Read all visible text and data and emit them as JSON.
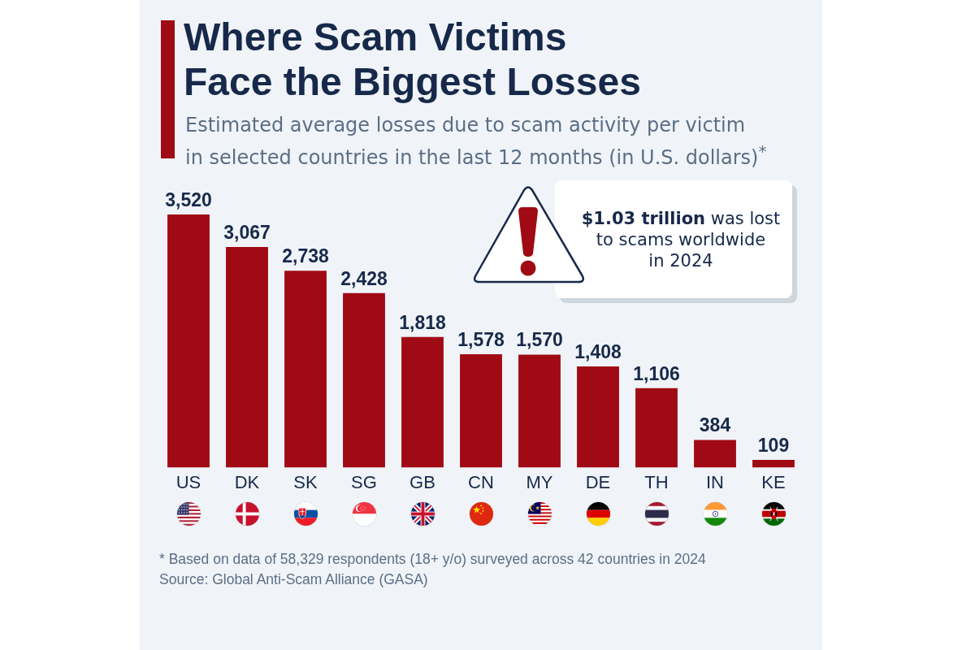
{
  "chart_data": {
    "type": "bar",
    "title": "Where Scam Victims Face the Biggest Losses",
    "subtitle": "Estimated average losses due to scam activity per victim in selected countries in the last 12 months (in U.S. dollars)$^{*}$",
    "categories": [
      "US",
      "DK",
      "SK",
      "SG",
      "GB",
      "CN",
      "MY",
      "DE",
      "TH",
      "IN",
      "KE"
    ],
    "values": [
      3520,
      3067,
      2738,
      2428,
      1818,
      1578,
      1570,
      1408,
      1106,
      384,
      109
    ],
    "value_labels": [
      "3,520",
      "3,067",
      "2,738",
      "2,428",
      "1,818",
      "1,578",
      "1,570",
      "1,408",
      "1,106",
      "384",
      "109"
    ],
    "color": "#a00a14",
    "annotations": [
      "$1.03 trillion was lost to scams worldwide in 2024",
      "* Based on data of 58,329 respondents (18+ y/o) surveyed across 42 countries in 2024",
      "Source: Global Anti-Scam Alliance (GASA)"
    ]
  }
}
